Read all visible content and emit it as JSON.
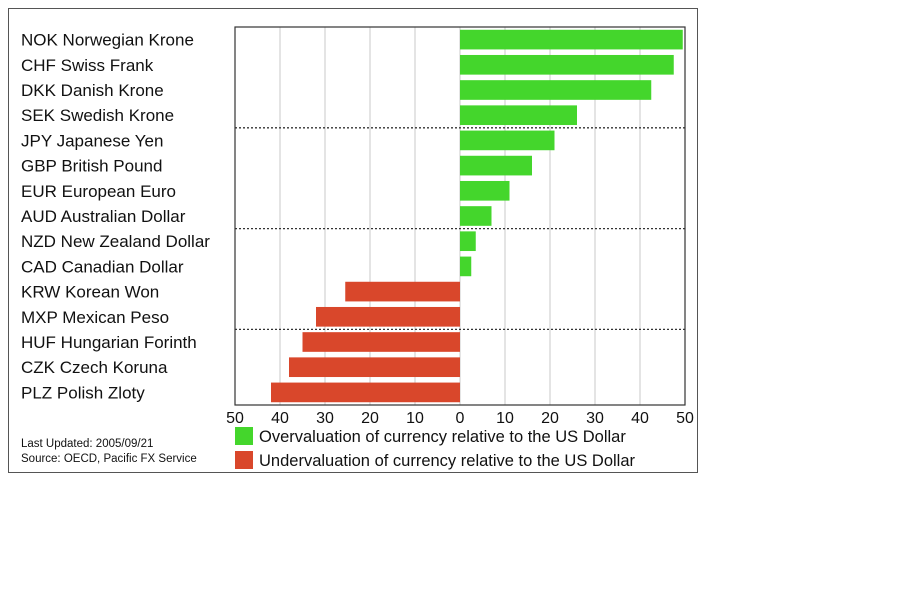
{
  "chart_data": {
    "type": "bar",
    "orientation": "horizontal",
    "categories": [
      "NOK Norwegian Krone",
      "CHF Swiss Frank",
      "DKK Danish Krone",
      "SEK Swedish Krone",
      "JPY Japanese Yen",
      "GBP British Pound",
      "EUR European Euro",
      "AUD Australian Dollar",
      "NZD New Zealand Dollar",
      "CAD Canadian Dollar",
      "KRW Korean Won",
      "MXP Mexican Peso",
      "HUF Hungarian Forinth",
      "CZK Czech Koruna",
      "PLZ Polish Zloty"
    ],
    "values": [
      49.5,
      47.5,
      42.5,
      26,
      21,
      16,
      11,
      7,
      3.5,
      2.5,
      -25.5,
      -32,
      -35,
      -38,
      -42
    ],
    "xlim": [
      -50,
      50
    ],
    "x_ticks": [
      -50,
      -40,
      -30,
      -20,
      -10,
      0,
      10,
      20,
      30,
      40,
      50
    ],
    "x_tick_labels": [
      "50",
      "40",
      "30",
      "20",
      "10",
      "0",
      "10",
      "20",
      "30",
      "40",
      "50"
    ],
    "gridlines": true,
    "group_separators_after": [
      4,
      8,
      12
    ],
    "colors": {
      "positive": "#44d62c",
      "negative": "#d9472b"
    },
    "legend": {
      "placement": "bottom",
      "entries": [
        {
          "label": "Overvaluation of currency relative to the US Dollar",
          "color": "#44d62c"
        },
        {
          "label": "Undervaluation of currency relative to the US Dollar",
          "color": "#d9472b"
        }
      ]
    },
    "footnote": {
      "updated": "Last Updated: 2005/09/21",
      "source": "Source: OECD, Pacific FX Service"
    }
  }
}
